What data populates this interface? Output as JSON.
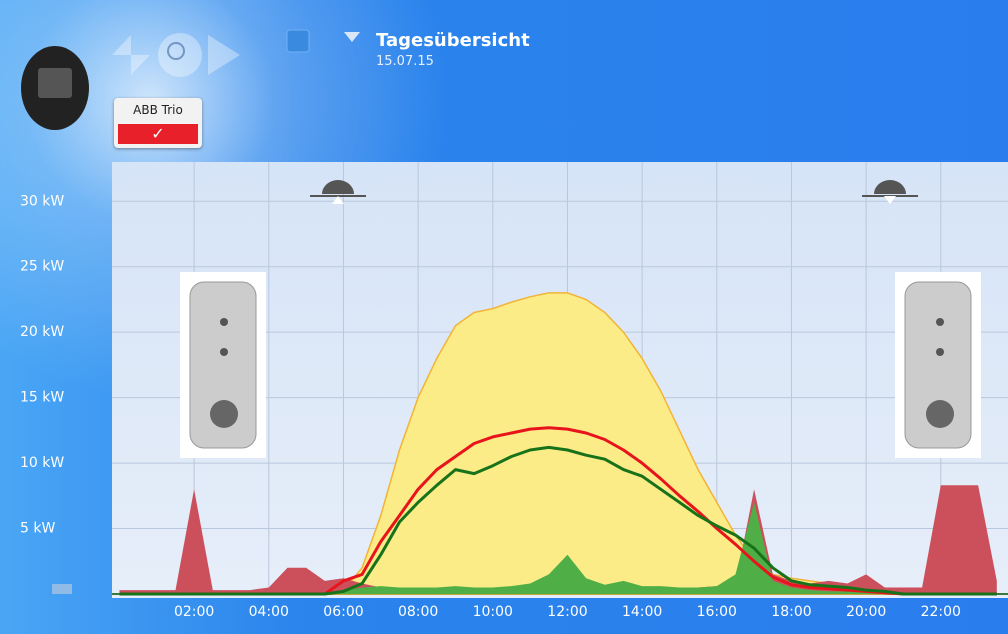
{
  "header": {
    "title": "Tagesübersicht",
    "date": "15.07.15"
  },
  "device": {
    "name": "ABB Trio"
  },
  "chart_data": {
    "type": "line",
    "x": [
      0,
      0.5,
      1,
      1.5,
      2,
      2.5,
      3,
      3.5,
      4,
      4.5,
      5,
      5.5,
      6,
      6.5,
      7,
      7.5,
      8,
      8.5,
      9,
      9.5,
      10,
      10.5,
      11,
      11.5,
      12,
      12.5,
      13,
      13.5,
      14,
      14.5,
      15,
      15.5,
      16,
      16.5,
      17,
      17.5,
      18,
      18.5,
      19,
      19.5,
      20,
      20.5,
      21,
      21.5,
      22,
      22.5,
      23,
      23.5
    ],
    "series": [
      {
        "kind": "area",
        "color": "#fcec88",
        "stroke": "#f2b437",
        "values": [
          0,
          0,
          0,
          0,
          0,
          0,
          0,
          0,
          0,
          0,
          0,
          0,
          0.3,
          2,
          6,
          11,
          15,
          18,
          20.5,
          21.5,
          21.8,
          22.3,
          22.7,
          23,
          23,
          22.5,
          21.5,
          20,
          18,
          15.5,
          12.5,
          9.5,
          7,
          4.5,
          2.5,
          1.5,
          1.2,
          1,
          0.8,
          0.6,
          0.4,
          0.2,
          0,
          0,
          0,
          0,
          0,
          0
        ]
      },
      {
        "kind": "area",
        "color": "#cc4f5c",
        "values": [
          0.3,
          0.3,
          0.3,
          0.3,
          8,
          0.3,
          0.3,
          0.3,
          0.5,
          2,
          2,
          1,
          1.2,
          0.8,
          0.5,
          0.5,
          0.4,
          0.4,
          0.4,
          0.4,
          0.4,
          0.4,
          0.4,
          0.5,
          0.5,
          0.5,
          0.5,
          0.5,
          0.5,
          0.5,
          0.5,
          0.5,
          0.6,
          0.8,
          8,
          1.5,
          1,
          0.8,
          1,
          0.8,
          1.5,
          0.5,
          0.5,
          0.5,
          8.3,
          8.3,
          8.3,
          1
        ]
      },
      {
        "kind": "area",
        "color": "#4fae45",
        "values": [
          0,
          0,
          0,
          0,
          0,
          0,
          0,
          0,
          0,
          0,
          0,
          0,
          0.3,
          0.5,
          0.6,
          0.5,
          0.5,
          0.5,
          0.6,
          0.5,
          0.5,
          0.6,
          0.8,
          1.5,
          3,
          1.2,
          0.7,
          1,
          0.6,
          0.6,
          0.5,
          0.5,
          0.6,
          1.5,
          7,
          1,
          0.5,
          0.3,
          0.2,
          0.2,
          0.1,
          0.1,
          0,
          0,
          0,
          0,
          0,
          0
        ]
      },
      {
        "kind": "line",
        "color": "#e8141c",
        "values": [
          0,
          0,
          0,
          0,
          0,
          0,
          0,
          0,
          0,
          0,
          0,
          0,
          1,
          1.5,
          4,
          6,
          8,
          9.5,
          10.5,
          11.5,
          12,
          12.3,
          12.6,
          12.7,
          12.6,
          12.3,
          11.8,
          11,
          10,
          8.8,
          7.5,
          6.3,
          5,
          3.8,
          2.5,
          1.3,
          0.7,
          0.5,
          0.4,
          0.3,
          0.2,
          0.1,
          0,
          0,
          0,
          0,
          0,
          0
        ]
      },
      {
        "kind": "line",
        "color": "#17721a",
        "values": [
          0,
          0,
          0,
          0,
          0,
          0,
          0,
          0,
          0,
          0,
          0,
          0,
          0.2,
          0.8,
          3,
          5.5,
          7,
          8.3,
          9.5,
          9.2,
          9.8,
          10.5,
          11,
          11.2,
          11,
          10.6,
          10.3,
          9.5,
          9,
          8,
          7,
          6,
          5.2,
          4.5,
          3.5,
          2,
          1,
          0.7,
          0.6,
          0.5,
          0.3,
          0.2,
          0,
          0,
          0,
          0,
          0,
          0
        ]
      }
    ],
    "xlim": [
      -0.2,
      23.8
    ],
    "xticks": [
      {
        "value": 2,
        "label": "02:00"
      },
      {
        "value": 4,
        "label": "04:00"
      },
      {
        "value": 6,
        "label": "06:00"
      },
      {
        "value": 8,
        "label": "08:00"
      },
      {
        "value": 10,
        "label": "10:00"
      },
      {
        "value": 12,
        "label": "12:00"
      },
      {
        "value": 14,
        "label": "14:00"
      },
      {
        "value": 16,
        "label": "16:00"
      },
      {
        "value": 18,
        "label": "18:00"
      },
      {
        "value": 20,
        "label": "20:00"
      },
      {
        "value": 22,
        "label": "22:00"
      }
    ],
    "ylim": [
      0,
      33
    ],
    "yticks": [
      {
        "value": 5,
        "label": "5 kW"
      },
      {
        "value": 10,
        "label": "10 kW"
      },
      {
        "value": 15,
        "label": "15 kW"
      },
      {
        "value": 20,
        "label": "20 kW"
      },
      {
        "value": 25,
        "label": "25 kW"
      },
      {
        "value": 30,
        "label": "30 kW"
      }
    ],
    "grid": true
  }
}
